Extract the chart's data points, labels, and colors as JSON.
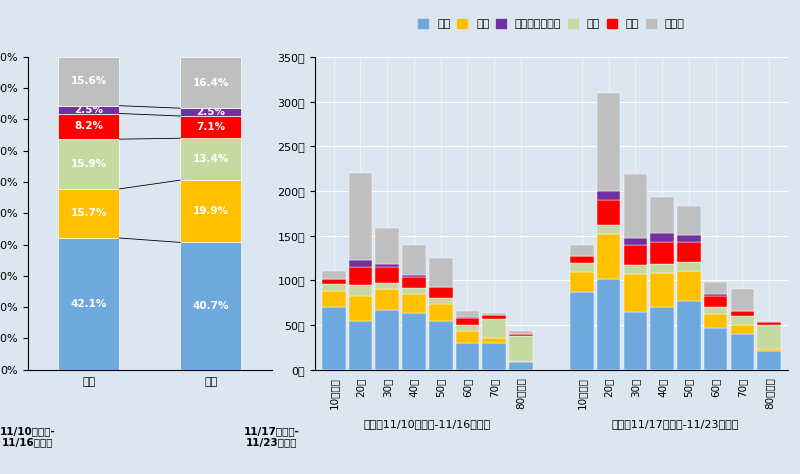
{
  "background_color": "#dce6f1",
  "colors": {
    "同居": "#6fa8dc",
    "職場": "#ffc000",
    "接待を伴う飲食": "#7030a0",
    "施設": "#c6d9a0",
    "会食": "#ff0000",
    "その他": "#bfbfbf"
  },
  "categories_order": [
    "同居",
    "職場",
    "施設",
    "会食",
    "接待を伴う飲食",
    "その他"
  ],
  "legend_order_right": [
    "同居",
    "職場",
    "接待を伴う飲食",
    "施設",
    "会食",
    "その他"
  ],
  "stacked_pct": {
    "前週": {
      "同居": 42.1,
      "職場": 15.7,
      "施設": 15.9,
      "会食": 8.2,
      "接待を伴う飲食": 2.5,
      "その他": 15.6
    },
    "今週": {
      "同居": 40.7,
      "職場": 19.9,
      "施設": 13.4,
      "会食": 7.1,
      "接待を伴う飲食": 2.5,
      "その他": 16.4
    }
  },
  "age_groups": [
    "10代以下",
    "20代",
    "30代",
    "40代",
    "50代",
    "60代",
    "70代",
    "80代以上"
  ],
  "bar_data_prev": {
    "同居": [
      70,
      55,
      67,
      63,
      54,
      30,
      30,
      9
    ],
    "職場": [
      18,
      27,
      23,
      22,
      20,
      13,
      5,
      1
    ],
    "施設": [
      8,
      13,
      7,
      6,
      6,
      7,
      22,
      28
    ],
    "会食": [
      5,
      20,
      18,
      13,
      12,
      8,
      4,
      2
    ],
    "接待を伴う飲食": [
      0,
      8,
      3,
      2,
      1,
      1,
      0,
      0
    ],
    "その他": [
      10,
      97,
      40,
      33,
      32,
      7,
      3,
      3
    ]
  },
  "bar_data_curr": {
    "同居": [
      87,
      102,
      65,
      70,
      77,
      47,
      40,
      21
    ],
    "職場": [
      22,
      50,
      42,
      38,
      34,
      15,
      10,
      2
    ],
    "施設": [
      10,
      10,
      10,
      10,
      10,
      8,
      10,
      27
    ],
    "会食": [
      8,
      28,
      22,
      25,
      22,
      12,
      6,
      3
    ],
    "接待を伴う飲食": [
      0,
      10,
      8,
      10,
      8,
      3,
      0,
      0
    ],
    "その他": [
      13,
      110,
      72,
      40,
      32,
      13,
      24,
      2
    ]
  },
  "yticks_bar": [
    0,
    50,
    100,
    150,
    200,
    250,
    300,
    350
  ]
}
